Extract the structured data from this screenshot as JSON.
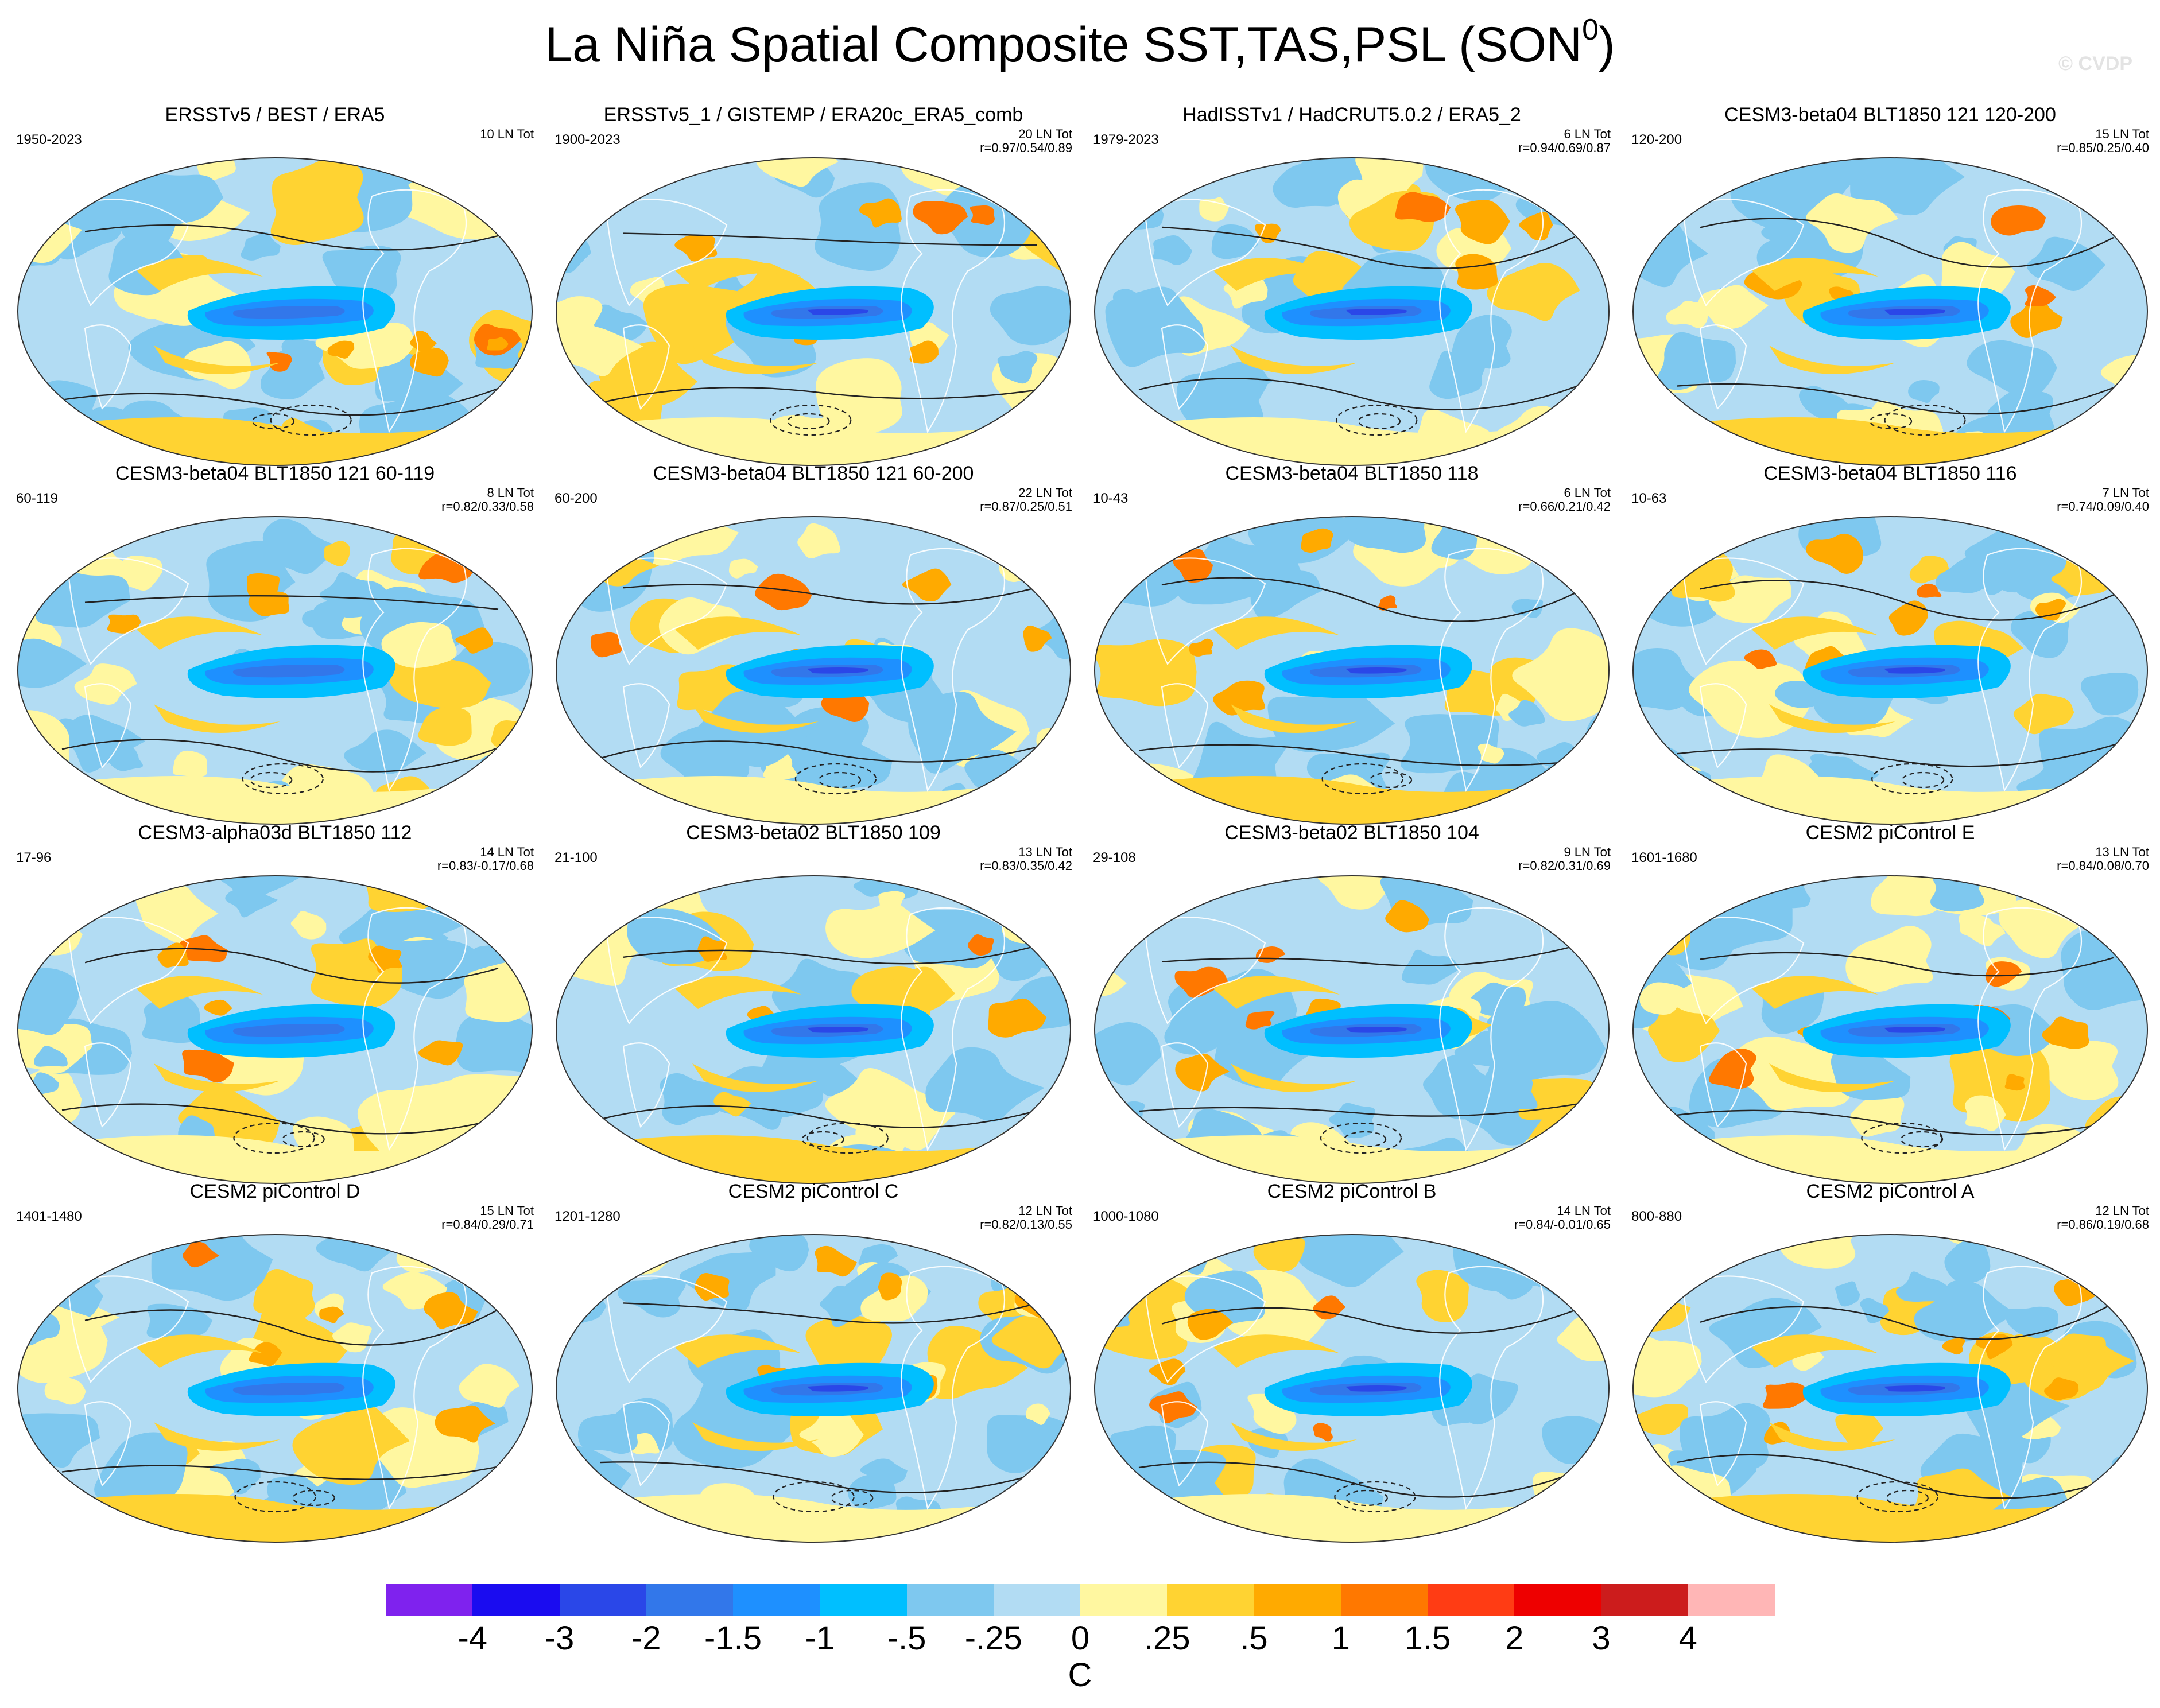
{
  "title": {
    "main": "La Niña Spatial Composite SST,TAS,PSL (SON",
    "superscript": "0",
    "close": ")"
  },
  "watermark": "© CVDP",
  "panels": [
    {
      "title": "ERSSTv5 / BEST / ERA5",
      "period": "1950-2023",
      "count": "10 LN Tot",
      "r": ""
    },
    {
      "title": "ERSSTv5_1 / GISTEMP / ERA20c_ERA5_comb",
      "period": "1900-2023",
      "count": "20 LN Tot",
      "r": "r=0.97/0.54/0.89"
    },
    {
      "title": "HadISSTv1 / HadCRUT5.0.2 / ERA5_2",
      "period": "1979-2023",
      "count": "6 LN Tot",
      "r": "r=0.94/0.69/0.87"
    },
    {
      "title": "CESM3-beta04 BLT1850 121 120-200",
      "period": "120-200",
      "count": "15 LN Tot",
      "r": "r=0.85/0.25/0.40"
    },
    {
      "title": "CESM3-beta04 BLT1850 121 60-119",
      "period": "60-119",
      "count": "8 LN Tot",
      "r": "r=0.82/0.33/0.58"
    },
    {
      "title": "CESM3-beta04 BLT1850 121 60-200",
      "period": "60-200",
      "count": "22 LN Tot",
      "r": "r=0.87/0.25/0.51"
    },
    {
      "title": "CESM3-beta04 BLT1850 118",
      "period": "10-43",
      "count": "6 LN Tot",
      "r": "r=0.66/0.21/0.42"
    },
    {
      "title": "CESM3-beta04 BLT1850 116",
      "period": "10-63",
      "count": "7 LN Tot",
      "r": "r=0.74/0.09/0.40"
    },
    {
      "title": "CESM3-alpha03d BLT1850 112",
      "period": "17-96",
      "count": "14 LN Tot",
      "r": "r=0.83/-0.17/0.68"
    },
    {
      "title": "CESM3-beta02 BLT1850 109",
      "period": "21-100",
      "count": "13 LN Tot",
      "r": "r=0.83/0.35/0.42"
    },
    {
      "title": "CESM3-beta02 BLT1850 104",
      "period": "29-108",
      "count": "9 LN Tot",
      "r": "r=0.82/0.31/0.69"
    },
    {
      "title": "CESM2 piControl E",
      "period": "1601-1680",
      "count": "13 LN Tot",
      "r": "r=0.84/0.08/0.70"
    },
    {
      "title": "CESM2 piControl D",
      "period": "1401-1480",
      "count": "15 LN Tot",
      "r": "r=0.84/0.29/0.71"
    },
    {
      "title": "CESM2 piControl C",
      "period": "1201-1280",
      "count": "12 LN Tot",
      "r": "r=0.82/0.13/0.55"
    },
    {
      "title": "CESM2 piControl B",
      "period": "1000-1080",
      "count": "14 LN Tot",
      "r": "r=0.84/-0.01/0.65"
    },
    {
      "title": "CESM2 piControl A",
      "period": "800-880",
      "count": "12 LN Tot",
      "r": "r=0.86/0.19/0.68"
    }
  ],
  "colorbar": {
    "colors": [
      "#7f22ee",
      "#1a0cf0",
      "#2a47e8",
      "#3277ea",
      "#1e90ff",
      "#00bfff",
      "#7ec8ef",
      "#b2dcf3",
      "#fff7a0",
      "#ffd332",
      "#ffaa00",
      "#ff7800",
      "#ff3c14",
      "#ee0000",
      "#cc1c1c",
      "#ffb6b6"
    ],
    "labels": [
      "-4",
      "-3",
      "-2",
      "-1.5",
      "-1",
      "-.5",
      "-.25",
      "0",
      ".25",
      ".5",
      "1",
      "1.5",
      "2",
      "3",
      "4"
    ],
    "units": "C"
  }
}
